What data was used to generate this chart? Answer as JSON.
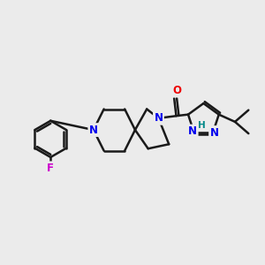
{
  "bg_color": "#ebebeb",
  "bond_color": "#1a1a1a",
  "bond_width": 1.8,
  "N_color": "#0000ee",
  "O_color": "#ee0000",
  "F_color": "#cc00cc",
  "H_color": "#008888",
  "font_size_atom": 8.5,
  "fig_width": 3.0,
  "fig_height": 3.0,
  "xlim": [
    0,
    10
  ],
  "ylim": [
    0,
    10
  ]
}
